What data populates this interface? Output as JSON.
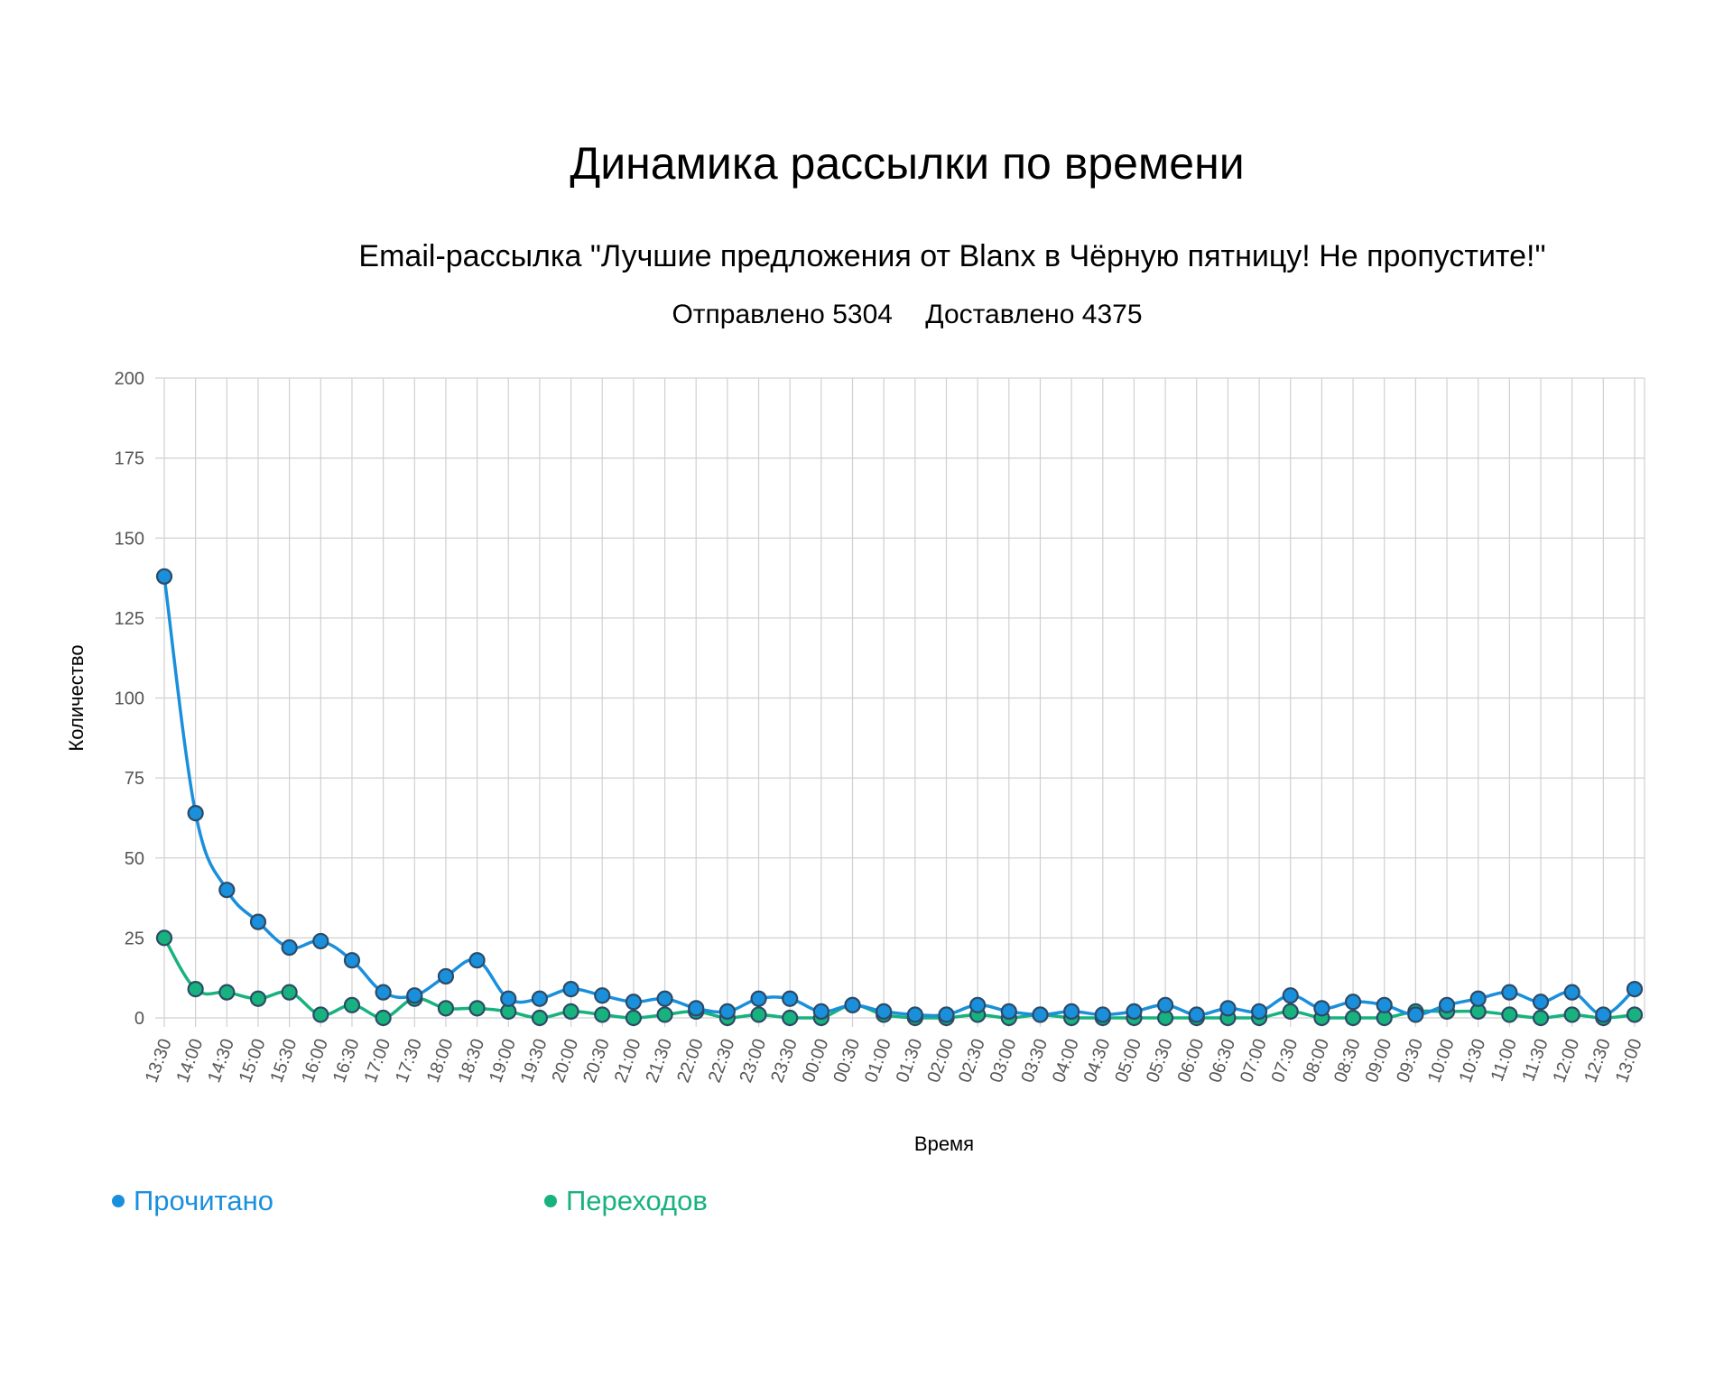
{
  "chart_data": {
    "type": "line",
    "title": "Динамика рассылки по времени",
    "subtitle": "Email-рассылка \"Лучшие предложения от Blanx в Чёрную пятницу! Не пропустите!\"",
    "stats": {
      "sent_label": "Отправлено",
      "sent_value": "5304",
      "delivered_label": "Доставлено",
      "delivered_value": "4375"
    },
    "xlabel": "Время",
    "ylabel": "Количество",
    "ylim": [
      0,
      200
    ],
    "yticks": [
      0,
      25,
      50,
      75,
      100,
      125,
      150,
      175,
      200
    ],
    "grid": true,
    "legend_position": "bottom-left",
    "categories": [
      "13:30",
      "14:00",
      "14:30",
      "15:00",
      "15:30",
      "16:00",
      "16:30",
      "17:00",
      "17:30",
      "18:00",
      "18:30",
      "19:00",
      "19:30",
      "20:00",
      "20:30",
      "21:00",
      "21:30",
      "22:00",
      "22:30",
      "23:00",
      "23:30",
      "00:00",
      "00:30",
      "01:00",
      "01:30",
      "02:00",
      "02:30",
      "03:00",
      "03:30",
      "04:00",
      "04:30",
      "05:00",
      "05:30",
      "06:00",
      "06:30",
      "07:00",
      "07:30",
      "08:00",
      "08:30",
      "09:00",
      "09:30",
      "10:00",
      "10:30",
      "11:00",
      "11:30",
      "12:00",
      "12:30",
      "13:00"
    ],
    "series": [
      {
        "name": "Прочитано",
        "color": "#1a8fdc",
        "values": [
          138,
          64,
          40,
          30,
          22,
          24,
          18,
          8,
          7,
          13,
          18,
          6,
          6,
          9,
          7,
          5,
          6,
          3,
          2,
          6,
          6,
          2,
          4,
          2,
          1,
          1,
          4,
          2,
          1,
          2,
          1,
          2,
          4,
          1,
          3,
          2,
          7,
          3,
          5,
          4,
          1,
          4,
          6,
          8,
          5,
          8,
          1,
          9
        ]
      },
      {
        "name": "Переходов",
        "color": "#17b27e",
        "values": [
          25,
          9,
          8,
          6,
          8,
          1,
          4,
          0,
          6,
          3,
          3,
          2,
          0,
          2,
          1,
          0,
          1,
          2,
          0,
          1,
          0,
          0,
          4,
          1,
          0,
          0,
          1,
          0,
          1,
          0,
          0,
          0,
          0,
          0,
          0,
          0,
          2,
          0,
          0,
          0,
          2,
          2,
          2,
          1,
          0,
          1,
          0,
          1
        ]
      }
    ]
  }
}
